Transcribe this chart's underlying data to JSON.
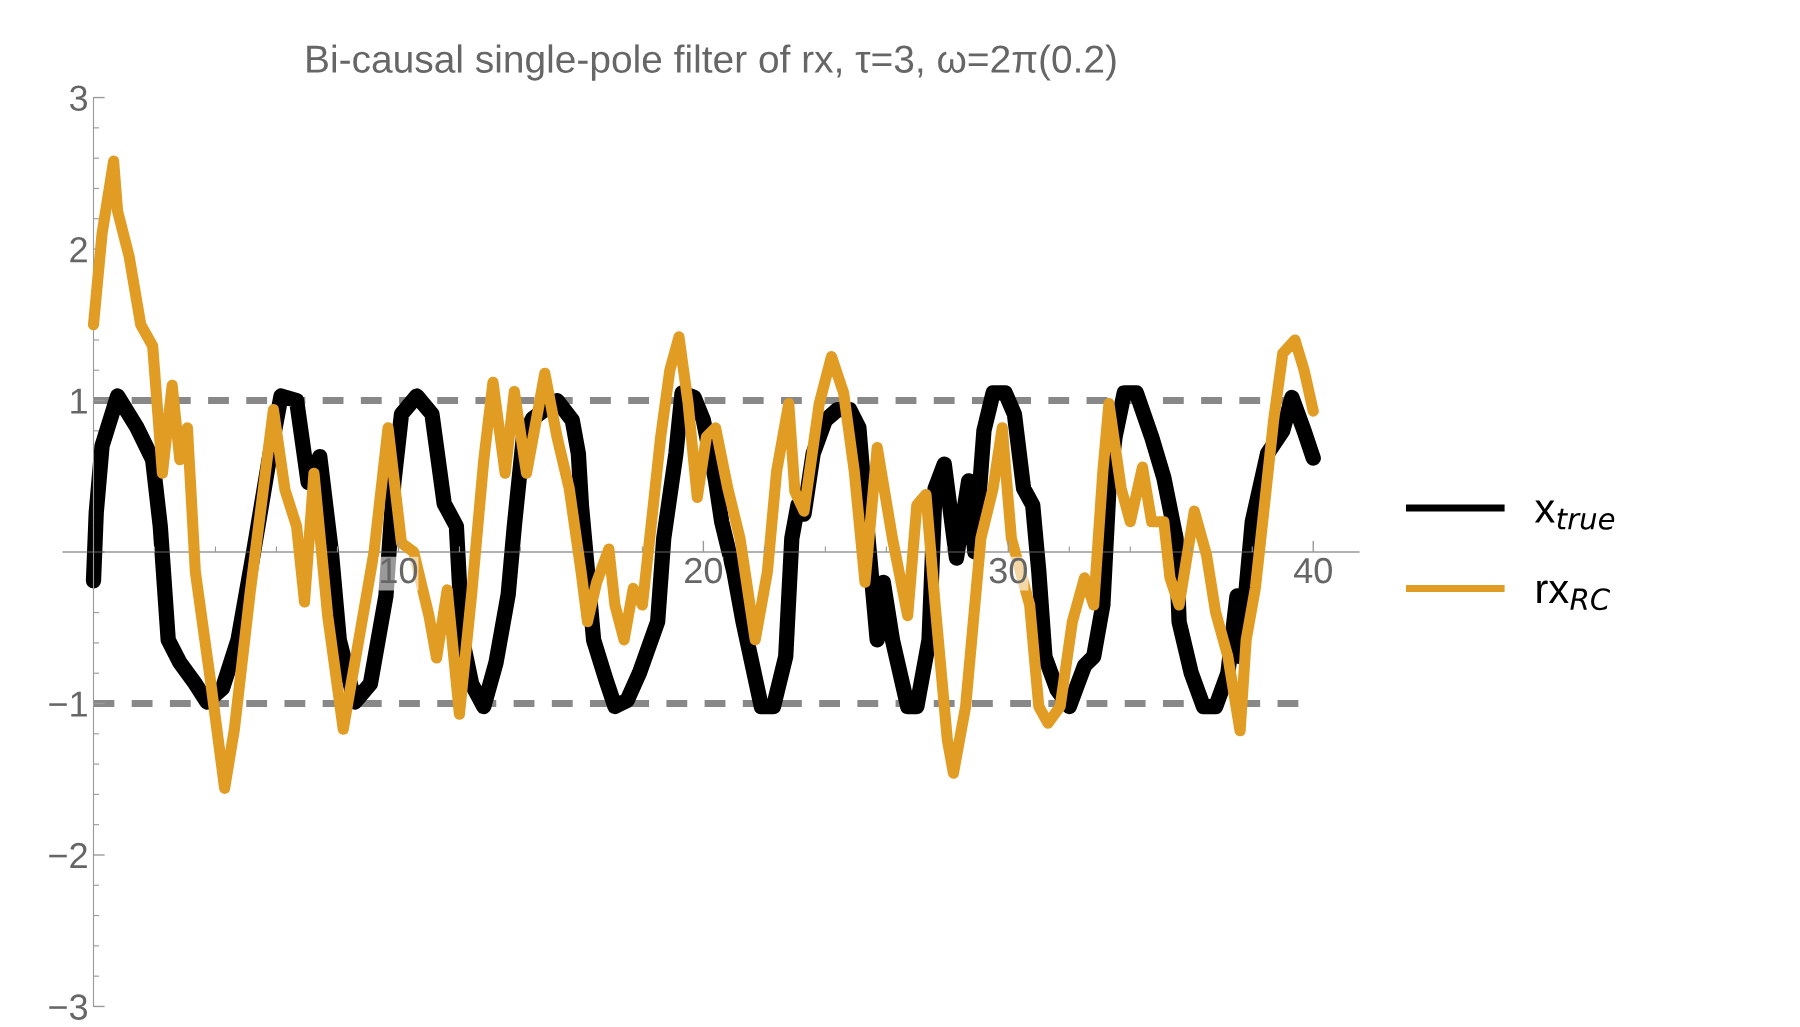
{
  "chart_data": {
    "type": "line",
    "title": "Bi-causal single-pole filter of rx, τ=3, ω=2π(0.2)",
    "xlim": [
      -1,
      41.5
    ],
    "ylim": [
      -3,
      3
    ],
    "xticks": [
      10,
      20,
      30,
      40
    ],
    "yticks": [
      {
        "value": -3,
        "label": "−3"
      },
      {
        "value": -2,
        "label": "−2"
      },
      {
        "value": -1,
        "label": "−1"
      },
      {
        "value": 0,
        "label": null
      },
      1,
      2,
      3
    ],
    "grid": false,
    "legend": "right",
    "line_style": "solid",
    "marker": "none",
    "ref_lines": [
      {
        "axis": "y",
        "value": 1,
        "label": null,
        "color": "#888888",
        "line_style": "dashed"
      },
      {
        "axis": "y",
        "value": -1,
        "label": null,
        "color": "#888888",
        "line_style": "dashed"
      }
    ],
    "series": [
      {
        "name": "x$_{true}$",
        "color": "#000000",
        "x": [
          0.0,
          0.09,
          0.28,
          0.79,
          1.43,
          1.94,
          2.19,
          2.45,
          2.83,
          3.34,
          3.72,
          4.23,
          4.74,
          5.25,
          5.76,
          6.15,
          6.66,
          7.04,
          7.42,
          7.8,
          8.06,
          8.57,
          9.08,
          9.59,
          9.85,
          10.1,
          10.6,
          11.1,
          11.5,
          11.9,
          12.1,
          12.4,
          12.8,
          13.2,
          13.6,
          13.8,
          14.1,
          14.4,
          15.2,
          15.7,
          15.9,
          16.0,
          16.2,
          16.4,
          16.8,
          17.1,
          17.5,
          17.9,
          18.5,
          18.7,
          19.1,
          19.3,
          19.7,
          20.0,
          20.4,
          20.6,
          21.0,
          21.3,
          21.9,
          22.3,
          22.7,
          22.9,
          23.1,
          23.3,
          23.6,
          24.0,
          24.4,
          24.8,
          25.1,
          25.4,
          25.7,
          25.9,
          26.2,
          26.7,
          27.0,
          27.4,
          27.6,
          27.9,
          28.3,
          28.7,
          28.9,
          29.2,
          29.5,
          29.9,
          30.2,
          30.5,
          30.8,
          31.0,
          31.2,
          31.6,
          32.0,
          32.5,
          32.8,
          33.1,
          33.3,
          33.5,
          33.8,
          34.2,
          34.7,
          35.1,
          35.5,
          35.6,
          36.0,
          36.4,
          36.8,
          37.2,
          37.4,
          37.5,
          37.6,
          38.0,
          38.5,
          39.0,
          39.3,
          39.7,
          40.0
        ],
        "values": [
          -0.19,
          0.26,
          0.7,
          1.03,
          0.82,
          0.61,
          0.17,
          -0.58,
          -0.73,
          -0.87,
          -0.99,
          -0.9,
          -0.58,
          0.0,
          0.61,
          1.03,
          1.0,
          0.46,
          0.63,
          0.0,
          -0.58,
          -0.99,
          -0.87,
          -0.29,
          0.46,
          0.91,
          1.03,
          0.91,
          0.32,
          0.17,
          -0.58,
          -0.87,
          -1.02,
          -0.73,
          -0.28,
          0.17,
          0.76,
          0.88,
          1.0,
          0.87,
          0.65,
          0.31,
          -0.13,
          -0.58,
          -0.84,
          -1.02,
          -0.98,
          -0.8,
          -0.46,
          0.09,
          0.65,
          1.05,
          1.02,
          0.87,
          0.47,
          0.2,
          -0.13,
          -0.46,
          -1.02,
          -1.02,
          -0.69,
          0.09,
          0.31,
          0.25,
          0.65,
          0.87,
          0.94,
          0.94,
          0.82,
          0.09,
          -0.58,
          -0.2,
          -0.58,
          -1.02,
          -1.02,
          -0.58,
          0.42,
          0.58,
          -0.04,
          0.47,
          0.0,
          0.8,
          1.05,
          1.05,
          0.91,
          0.42,
          0.31,
          -0.13,
          -0.69,
          -0.91,
          -1.02,
          -0.75,
          -0.69,
          -0.35,
          0.42,
          0.76,
          1.05,
          1.05,
          0.76,
          0.49,
          0.09,
          -0.46,
          -0.8,
          -1.02,
          -1.02,
          -0.8,
          -0.46,
          -0.29,
          -0.69,
          0.2,
          0.65,
          0.8,
          1.02,
          0.8,
          0.62
        ]
      },
      {
        "name": "rx$_{RC}$",
        "color": "#e19c24",
        "x": [
          0.0,
          0.28,
          0.66,
          0.79,
          1.17,
          1.55,
          1.94,
          2.26,
          2.58,
          2.83,
          3.08,
          3.34,
          3.85,
          4.3,
          4.62,
          5.13,
          5.51,
          5.9,
          6.28,
          6.66,
          6.92,
          7.23,
          7.68,
          8.19,
          8.7,
          9.2,
          9.66,
          10.1,
          10.5,
          11.0,
          11.25,
          11.6,
          12.0,
          12.4,
          12.8,
          13.1,
          13.5,
          13.8,
          14.2,
          14.8,
          15.2,
          15.6,
          15.99,
          16.2,
          16.5,
          16.9,
          17.1,
          17.4,
          17.7,
          18.0,
          18.3,
          18.6,
          18.9,
          19.2,
          19.5,
          19.8,
          20.1,
          20.4,
          20.8,
          21.2,
          21.7,
          22.1,
          22.4,
          22.8,
          23.0,
          23.3,
          23.8,
          24.2,
          24.6,
          24.95,
          25.3,
          25.7,
          26.2,
          26.7,
          27.0,
          27.3,
          27.6,
          28.0,
          28.2,
          28.6,
          29.1,
          29.5,
          29.8,
          30.1,
          30.4,
          30.7,
          31.0,
          31.3,
          31.7,
          32.1,
          32.5,
          32.8,
          33.1,
          33.3,
          33.7,
          34.0,
          34.4,
          34.7,
          35.1,
          35.3,
          35.6,
          36.1,
          36.5,
          36.8,
          37.2,
          37.6,
          37.8,
          38.1,
          38.4,
          38.7,
          39.0,
          39.4,
          39.7,
          40.0
        ],
        "values": [
          1.5,
          2.1,
          2.58,
          2.25,
          1.95,
          1.5,
          1.36,
          0.52,
          1.1,
          0.61,
          0.82,
          -0.13,
          -0.87,
          -1.56,
          -1.17,
          -0.28,
          0.32,
          0.94,
          0.41,
          0.17,
          -0.33,
          0.52,
          -0.42,
          -1.17,
          -0.58,
          0.0,
          0.82,
          0.06,
          0.0,
          -0.42,
          -0.7,
          -0.25,
          -1.07,
          -0.28,
          0.61,
          1.12,
          0.52,
          1.06,
          0.52,
          1.18,
          0.76,
          0.42,
          -0.13,
          -0.46,
          -0.2,
          0.02,
          -0.35,
          -0.58,
          -0.24,
          -0.35,
          0.2,
          0.76,
          1.2,
          1.42,
          0.98,
          0.36,
          0.76,
          0.82,
          0.42,
          0.09,
          -0.58,
          -0.13,
          0.53,
          0.98,
          0.4,
          0.27,
          0.98,
          1.29,
          1.05,
          0.53,
          -0.2,
          0.69,
          0.09,
          -0.42,
          0.31,
          0.38,
          -0.35,
          -1.24,
          -1.46,
          -1.02,
          0.09,
          0.42,
          0.82,
          0.09,
          -0.13,
          -0.35,
          -1.02,
          -1.13,
          -1.02,
          -0.46,
          -0.17,
          -0.35,
          0.53,
          0.98,
          0.42,
          0.2,
          0.56,
          0.2,
          0.2,
          -0.17,
          -0.35,
          0.27,
          -0.02,
          -0.4,
          -0.69,
          -1.18,
          -0.58,
          -0.24,
          0.31,
          0.87,
          1.31,
          1.4,
          1.2,
          0.93
        ]
      }
    ]
  }
}
